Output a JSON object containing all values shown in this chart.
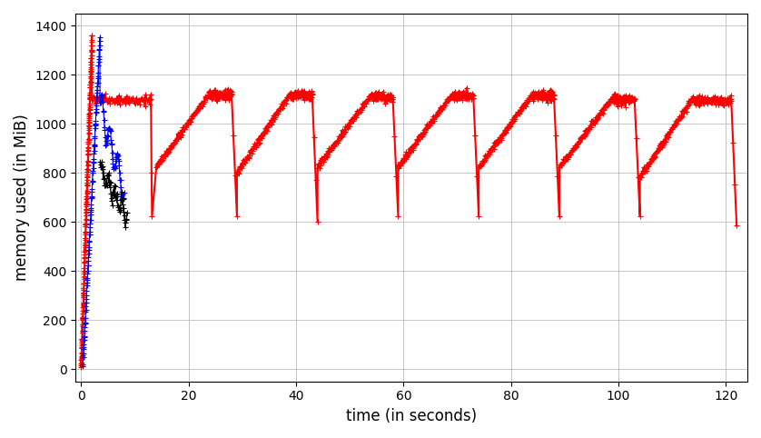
{
  "title": "",
  "xlabel": "time (in seconds)",
  "ylabel": "memory used (in MiB)",
  "xlim": [
    -1,
    124
  ],
  "ylim": [
    -50,
    1450
  ],
  "xticks": [
    0,
    20,
    40,
    60,
    80,
    100,
    120
  ],
  "yticks": [
    0,
    200,
    400,
    600,
    800,
    1000,
    1200,
    1400
  ],
  "figsize": [
    8.38,
    4.82
  ],
  "dpi": 100,
  "grid_color": "#b0b0b0",
  "bg_color": "#ffffff",
  "red_color": "red",
  "blue_color": "blue",
  "black_color": "black",
  "marker": "+",
  "markersize": 4,
  "linewidth": 1.5,
  "cycles": [
    {
      "t_ramp_start": 14,
      "t_ramp_end": 24,
      "t_plat_end": 28,
      "t_drop": 29,
      "y_low": 625,
      "y_peak": 1130,
      "y_plat": 1120,
      "y_after_drop": 625
    },
    {
      "t_ramp_start": 29,
      "t_ramp_end": 39,
      "t_plat_end": 43,
      "t_drop": 44,
      "y_low": 600,
      "y_peak": 1130,
      "y_plat": 1120,
      "y_after_drop": 600
    },
    {
      "t_ramp_start": 44,
      "t_ramp_end": 54,
      "t_plat_end": 58,
      "t_drop": 59,
      "y_low": 625,
      "y_peak": 1120,
      "y_plat": 1110,
      "y_after_drop": 625
    },
    {
      "t_ramp_start": 59,
      "t_ramp_end": 69,
      "t_plat_end": 73,
      "t_drop": 74,
      "y_low": 625,
      "y_peak": 1120,
      "y_plat": 1115,
      "y_after_drop": 625
    },
    {
      "t_ramp_start": 74,
      "t_ramp_end": 84,
      "t_plat_end": 88,
      "t_drop": 89,
      "y_low": 625,
      "y_peak": 1120,
      "y_plat": 1115,
      "y_after_drop": 625
    },
    {
      "t_ramp_start": 89,
      "t_ramp_end": 99,
      "t_plat_end": 103,
      "t_drop": 104,
      "y_low": 625,
      "y_peak": 1110,
      "y_plat": 1100,
      "y_after_drop": 625
    },
    {
      "t_ramp_start": 104,
      "t_ramp_end": 114,
      "t_plat_end": 121,
      "t_drop": 122,
      "y_low": 585,
      "y_peak": 1110,
      "y_plat": 1095,
      "y_after_drop": 585
    }
  ]
}
